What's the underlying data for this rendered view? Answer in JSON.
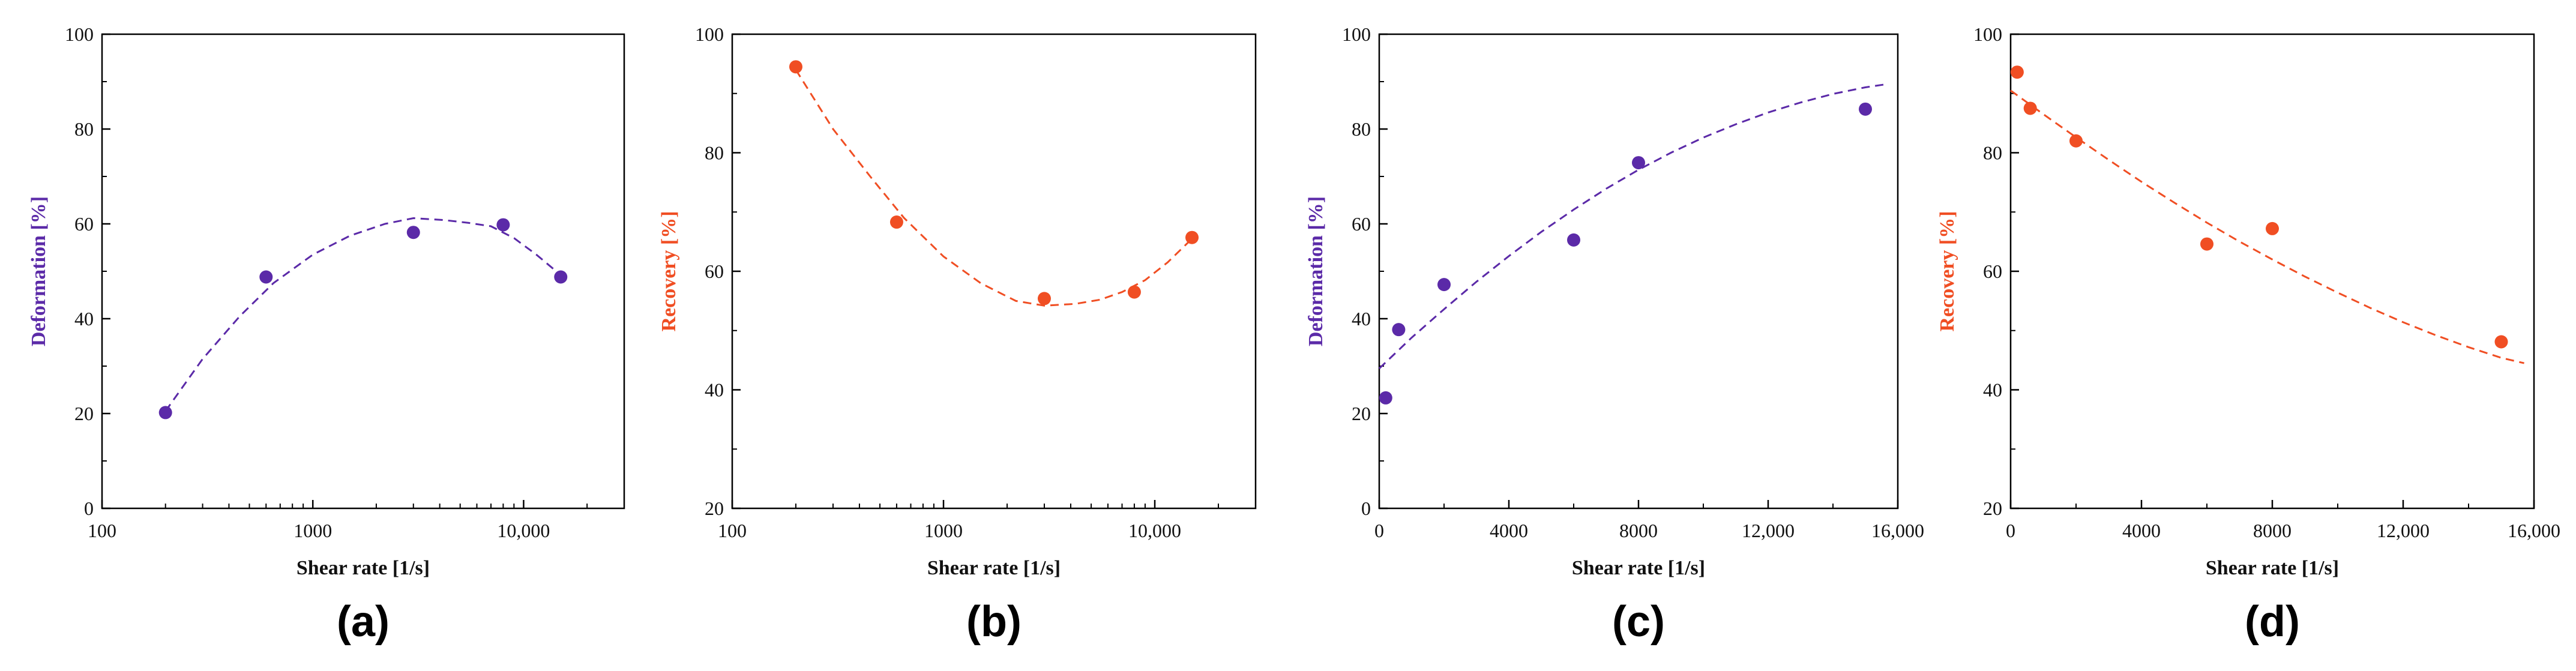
{
  "colors": {
    "purple": "#5b2aa8",
    "orange": "#f04e23",
    "axis": "#000000"
  },
  "chart_data": [
    {
      "type": "scatter",
      "label": "(a)",
      "xscale": "log",
      "xlim": [
        100,
        30000
      ],
      "ylim": [
        0,
        100
      ],
      "xticks": [
        100,
        1000,
        10000
      ],
      "xtick_labels": [
        "100",
        "1000",
        "10,000"
      ],
      "yticks": [
        0,
        20,
        40,
        60,
        80,
        100
      ],
      "ytick_labels": [
        "0",
        "20",
        "40",
        "60",
        "80",
        "100"
      ],
      "xlabel": "Shear rate [1/s]",
      "ylabel": "Deformation [%]",
      "color": "purple",
      "points": {
        "x": [
          200,
          600,
          3000,
          8000,
          15000
        ],
        "y": [
          20.2,
          48.8,
          58.2,
          59.8,
          48.8
        ]
      },
      "fit": {
        "x": [
          200,
          300,
          450,
          650,
          1000,
          1500,
          2200,
          3000,
          4200,
          5500,
          7000,
          9000,
          11500,
          15000
        ],
        "y": [
          20.5,
          31.5,
          40.5,
          47.5,
          53.5,
          57.5,
          60.0,
          61.2,
          60.8,
          60.2,
          59.5,
          57.0,
          53.5,
          49.2
        ]
      }
    },
    {
      "type": "scatter",
      "label": "(b)",
      "xscale": "log",
      "xlim": [
        100,
        30000
      ],
      "ylim": [
        20,
        100
      ],
      "xticks": [
        100,
        1000,
        10000
      ],
      "xtick_labels": [
        "100",
        "1000",
        "10,000"
      ],
      "yticks": [
        20,
        40,
        60,
        80,
        100
      ],
      "ytick_labels": [
        "20",
        "40",
        "60",
        "80",
        "100"
      ],
      "xlabel": "Shear rate [1/s]",
      "ylabel": "Recovery [%]",
      "color": "orange",
      "points": {
        "x": [
          200,
          600,
          3000,
          8000,
          15000
        ],
        "y": [
          94.5,
          68.3,
          55.4,
          56.5,
          65.7
        ]
      },
      "fit": {
        "x": [
          200,
          300,
          450,
          650,
          1000,
          1500,
          2200,
          3000,
          4200,
          5500,
          7000,
          9000,
          11500,
          15000
        ],
        "y": [
          94.0,
          84.0,
          76.0,
          69.0,
          62.5,
          58.0,
          55.0,
          54.2,
          54.5,
          55.2,
          56.5,
          58.5,
          61.5,
          65.5
        ]
      }
    },
    {
      "type": "scatter",
      "label": "(c)",
      "xscale": "linear",
      "xlim": [
        0,
        16000
      ],
      "ylim": [
        0,
        100
      ],
      "xticks": [
        0,
        4000,
        8000,
        12000,
        16000
      ],
      "xtick_labels": [
        "0",
        "4000",
        "8000",
        "12,000",
        "16,000"
      ],
      "yticks": [
        0,
        20,
        40,
        60,
        80,
        100
      ],
      "ytick_labels": [
        "0",
        "20",
        "40",
        "60",
        "80",
        "100"
      ],
      "xlabel": "Shear rate [1/s]",
      "ylabel": "Deformation [%]",
      "color": "purple",
      "points": {
        "x": [
          200,
          600,
          2000,
          6000,
          8000,
          15000
        ],
        "y": [
          23.3,
          37.7,
          47.2,
          56.6,
          72.9,
          84.2
        ]
      },
      "fit": {
        "x": [
          0,
          1000,
          2000,
          3000,
          4000,
          5000,
          6000,
          7000,
          8000,
          9000,
          10000,
          11000,
          12000,
          13000,
          14000,
          15000,
          15700
        ],
        "y": [
          29.5,
          36.0,
          42.0,
          47.8,
          53.2,
          58.3,
          63.0,
          67.4,
          71.4,
          75.0,
          78.2,
          81.0,
          83.5,
          85.6,
          87.4,
          88.8,
          89.5
        ]
      }
    },
    {
      "type": "scatter",
      "label": "(d)",
      "xscale": "linear",
      "xlim": [
        0,
        16000
      ],
      "ylim": [
        20,
        100
      ],
      "xticks": [
        0,
        4000,
        8000,
        12000,
        16000
      ],
      "xtick_labels": [
        "0",
        "4000",
        "8000",
        "12,000",
        "16,000"
      ],
      "yticks": [
        20,
        40,
        60,
        80,
        100
      ],
      "ytick_labels": [
        "20",
        "40",
        "60",
        "80",
        "100"
      ],
      "xlabel": "Shear rate [1/s]",
      "ylabel": "Recovery [%]",
      "color": "orange",
      "points": {
        "x": [
          200,
          600,
          2000,
          6000,
          8000,
          15000
        ],
        "y": [
          93.6,
          87.5,
          82.0,
          64.6,
          67.2,
          48.1
        ]
      },
      "fit": {
        "x": [
          0,
          1000,
          2000,
          3000,
          4000,
          5000,
          6000,
          7000,
          8000,
          9000,
          10000,
          11000,
          12000,
          13000,
          14000,
          15000,
          15700
        ],
        "y": [
          90.5,
          86.5,
          82.6,
          78.8,
          75.1,
          71.6,
          68.2,
          65.0,
          62.0,
          59.1,
          56.4,
          53.8,
          51.4,
          49.2,
          47.2,
          45.4,
          44.5
        ]
      }
    }
  ]
}
